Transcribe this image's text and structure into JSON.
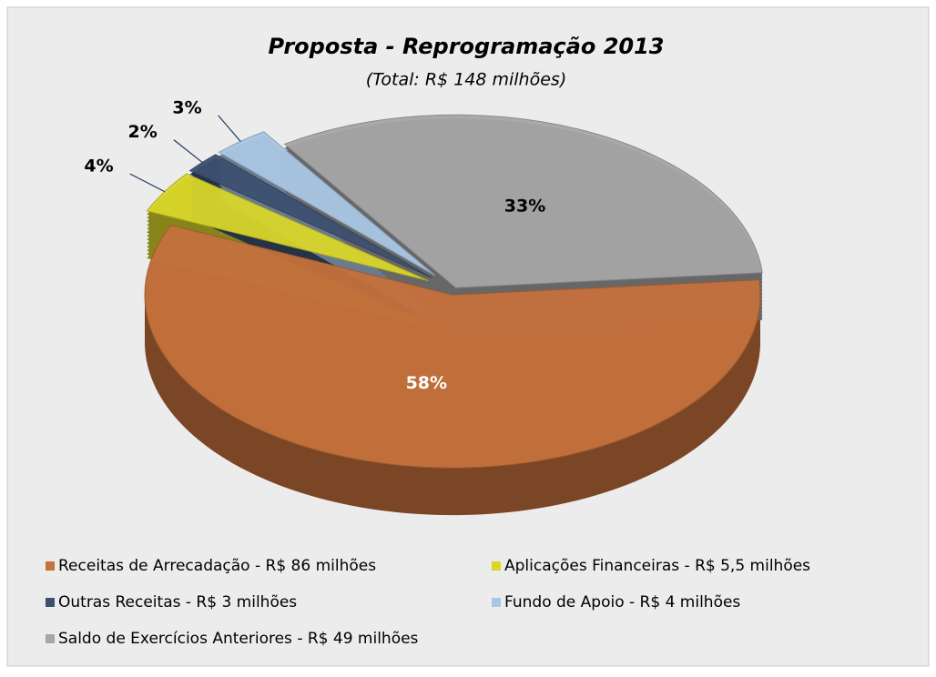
{
  "chart_data": {
    "type": "pie",
    "title": "Proposta - Reprogramação 2013",
    "subtitle": "(Total: R$ 148 milhões)",
    "categories": [
      "Receitas de Arrecadação - R$ 86 milhões",
      "Aplicações Financeiras - R$ 5,5 milhões",
      "Outras Receitas - R$ 3 milhões",
      "Fundo de Apoio - R$ 4 milhões",
      "Saldo de Exercícios Anteriores - R$ 49 milhões"
    ],
    "values": [
      58,
      4,
      2,
      3,
      33
    ],
    "value_labels": [
      "58%",
      "4%",
      "2%",
      "3%",
      "33%"
    ],
    "colors": [
      "#c4713c",
      "#d9d62a",
      "#3d5070",
      "#a9c6e4",
      "#a6a6a6"
    ],
    "legend": "bottom"
  }
}
